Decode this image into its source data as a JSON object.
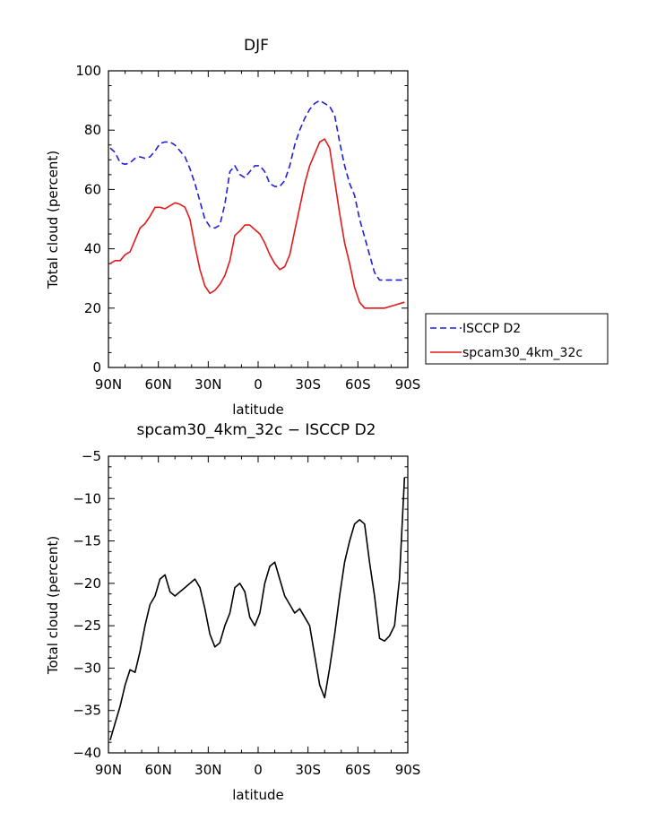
{
  "chart_data": [
    {
      "type": "line",
      "title": "DJF",
      "xlabel": "latitude",
      "ylabel": "Total cloud (percent)",
      "xlim": [
        90,
        -90
      ],
      "ylim": [
        0,
        100
      ],
      "x_ticks": [
        90,
        60,
        30,
        0,
        -30,
        -60,
        -90
      ],
      "x_tick_labels": [
        "90N",
        "60N",
        "30N",
        "0",
        "30S",
        "60S",
        "90S"
      ],
      "y_ticks": [
        0,
        20,
        40,
        60,
        80,
        100
      ],
      "y_tick_labels": [
        "0",
        "20",
        "40",
        "60",
        "80",
        "100"
      ],
      "legend": {
        "placement": "right, outside plot",
        "entries": [
          "ISCCP D2",
          "spcam30_4km_32c"
        ]
      },
      "series": [
        {
          "name": "ISCCP D2",
          "color": "#1f1fd6",
          "style": "dashed",
          "x": [
            89,
            86,
            83,
            80,
            77,
            74,
            71,
            68,
            65,
            62,
            59,
            56,
            53,
            50,
            47,
            44,
            41,
            38,
            35,
            32,
            29,
            26,
            23,
            20,
            17,
            14,
            11,
            8,
            5,
            2,
            -1,
            -4,
            -7,
            -10,
            -13,
            -16,
            -19,
            -22,
            -25,
            -28,
            -31,
            -34,
            -37,
            -40,
            -43,
            -46,
            -49,
            -52,
            -55,
            -58,
            -61,
            -64,
            -67,
            -70,
            -73,
            -76,
            -79,
            -82,
            -85,
            -88
          ],
          "y": [
            74,
            72.5,
            69,
            68.5,
            69,
            70.5,
            71,
            70.5,
            71,
            73,
            75.5,
            76,
            76,
            75,
            73,
            71,
            67,
            62,
            56,
            50,
            47.5,
            47,
            48,
            55,
            66,
            68,
            65,
            64,
            66,
            68,
            68,
            66,
            62,
            61,
            61,
            63,
            68,
            75,
            80,
            84,
            87,
            89,
            90,
            89,
            88,
            85,
            76,
            68,
            62,
            58,
            50,
            44,
            38,
            32,
            29.5,
            29.5,
            29.5,
            29.5,
            29.5,
            29.5
          ]
        },
        {
          "name": "spcam30_4km_32c",
          "color": "#e01b1b",
          "style": "solid",
          "x": [
            89,
            86,
            83,
            80,
            77,
            74,
            71,
            68,
            65,
            62,
            59,
            56,
            53,
            50,
            47,
            44,
            41,
            38,
            35,
            32,
            29,
            26,
            23,
            20,
            17,
            14,
            11,
            8,
            5,
            2,
            -1,
            -4,
            -7,
            -10,
            -13,
            -16,
            -19,
            -22,
            -25,
            -28,
            -31,
            -34,
            -37,
            -40,
            -43,
            -46,
            -49,
            -52,
            -55,
            -58,
            -61,
            -64,
            -67,
            -70,
            -73,
            -76,
            -79,
            -82,
            -85,
            -88
          ],
          "y": [
            35,
            36,
            36,
            38,
            39,
            43,
            47,
            48.5,
            51,
            54,
            54,
            53.5,
            54.5,
            55.5,
            55,
            54,
            50,
            41,
            33,
            27.5,
            25,
            26,
            28,
            31,
            36,
            44.5,
            46,
            48,
            48,
            46.5,
            45,
            42,
            38,
            35,
            33,
            34,
            38,
            46,
            54,
            62,
            68,
            72,
            76,
            77,
            74,
            63,
            52,
            42,
            35,
            27,
            22,
            20,
            20,
            20,
            20,
            20,
            20.5,
            21,
            21.5,
            22
          ]
        }
      ]
    },
    {
      "type": "line",
      "title": "spcam30_4km_32c − ISCCP D2",
      "xlabel": "latitude",
      "ylabel": "Total cloud (percent)",
      "xlim": [
        90,
        -90
      ],
      "ylim": [
        -40,
        -5
      ],
      "x_ticks": [
        90,
        60,
        30,
        0,
        -30,
        -60,
        -90
      ],
      "x_tick_labels": [
        "90N",
        "60N",
        "30N",
        "0",
        "30S",
        "60S",
        "90S"
      ],
      "y_ticks": [
        -40,
        -35,
        -30,
        -25,
        -20,
        -15,
        -10,
        -5
      ],
      "y_tick_labels": [
        "−40",
        "−35",
        "−30",
        "−25",
        "−20",
        "−15",
        "−10",
        "−5"
      ],
      "series": [
        {
          "color": "#000000",
          "style": "solid",
          "x": [
            89,
            86,
            83,
            80,
            77,
            74,
            71,
            68,
            65,
            62,
            59,
            56,
            53,
            50,
            47,
            44,
            41,
            38,
            35,
            32,
            29,
            26,
            23,
            20,
            17,
            14,
            11,
            8,
            5,
            2,
            -1,
            -4,
            -7,
            -10,
            -13,
            -16,
            -19,
            -22,
            -25,
            -28,
            -31,
            -34,
            -37,
            -40,
            -43,
            -46,
            -49,
            -52,
            -55,
            -58,
            -61,
            -64,
            -67,
            -70,
            -73,
            -76,
            -79,
            -82,
            -85,
            -88
          ],
          "y": [
            -38.5,
            -36.5,
            -34.5,
            -32,
            -30.2,
            -30.5,
            -28,
            -25,
            -22.5,
            -21.5,
            -19.5,
            -19,
            -21,
            -21.5,
            -21,
            -20.5,
            -20,
            -19.5,
            -20.5,
            -23,
            -26,
            -27.5,
            -27,
            -25,
            -23.5,
            -20.5,
            -20,
            -21,
            -24,
            -25,
            -23.5,
            -20,
            -18,
            -17.5,
            -19.5,
            -21.5,
            -22.5,
            -23.5,
            -23,
            -24,
            -25,
            -28.5,
            -32,
            -33.5,
            -30,
            -26,
            -21.5,
            -17.5,
            -15,
            -13,
            -12.5,
            -13,
            -17.5,
            -21.5,
            -26.5,
            -26.8,
            -26.2,
            -25,
            -19.5,
            -7.5
          ]
        }
      ]
    }
  ]
}
